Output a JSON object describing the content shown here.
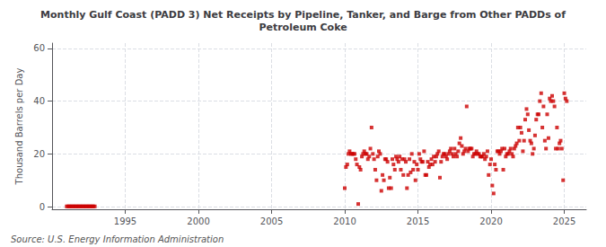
{
  "chart_data": {
    "type": "scatter",
    "title": "Monthly Gulf Coast (PADD 3) Net Receipts by Pipeline, Tanker, and Barge from Other PADDs of\nPetroleum Coke",
    "ylabel": "Thousand Barrels per Day",
    "annotations": [
      "Source: U.S. Energy Information Administration"
    ],
    "xlim": [
      1990,
      2026.5
    ],
    "ylim": [
      -1,
      62
    ],
    "xticks": [
      1995,
      2000,
      2005,
      2010,
      2015,
      2020,
      2025
    ],
    "yticks": [
      0,
      20,
      40,
      60
    ],
    "grid": true,
    "marker": "square",
    "series": [
      {
        "color": "#cc0000",
        "x": [
          1991.0,
          1991.08,
          1991.17,
          1991.25,
          1991.33,
          1991.42,
          1991.5,
          1991.58,
          1991.67,
          1991.75,
          1991.83,
          1991.92,
          1992.0,
          1992.08,
          1992.17,
          1992.25,
          1992.33,
          1992.42,
          1992.5,
          1992.58,
          1992.67,
          1992.75,
          1992.83,
          1992.92
        ],
        "values": [
          0.1,
          0.1,
          0.1,
          0.1,
          0.1,
          0.1,
          0.1,
          0.1,
          0.1,
          0.1,
          0.1,
          0.1,
          0.1,
          0.1,
          0.1,
          0.1,
          0.1,
          0.1,
          0.1,
          0.1,
          0.1,
          0.1,
          0.1,
          0.1
        ]
      },
      {
        "color": "#cc0000",
        "x": [
          2010.0,
          2010.08,
          2010.17,
          2010.25,
          2010.33,
          2010.42,
          2010.5,
          2010.58,
          2010.67,
          2010.75,
          2010.83,
          2010.92,
          2011.0,
          2011.08,
          2011.17,
          2011.25,
          2011.33,
          2011.42,
          2011.5,
          2011.58,
          2011.67,
          2011.75,
          2011.83,
          2011.92,
          2012.0,
          2012.08,
          2012.17,
          2012.25,
          2012.33,
          2012.42,
          2012.5,
          2012.58,
          2012.67,
          2012.75,
          2012.83,
          2012.92,
          2013.0,
          2013.08,
          2013.17,
          2013.25,
          2013.33,
          2013.42,
          2013.5,
          2013.58,
          2013.67,
          2013.75,
          2013.83,
          2013.92,
          2014.0,
          2014.08,
          2014.17,
          2014.25,
          2014.33,
          2014.42,
          2014.5,
          2014.58,
          2014.67,
          2014.75,
          2014.83,
          2014.92,
          2015.0,
          2015.08,
          2015.17,
          2015.25,
          2015.33,
          2015.42,
          2015.5,
          2015.58,
          2015.67,
          2015.75,
          2015.83,
          2015.92,
          2016.0,
          2016.08,
          2016.17,
          2016.25,
          2016.33,
          2016.42,
          2016.5,
          2016.58,
          2016.67,
          2016.75,
          2016.83,
          2016.92,
          2017.0,
          2017.08,
          2017.17,
          2017.25,
          2017.33,
          2017.42,
          2017.5,
          2017.58,
          2017.67,
          2017.75,
          2017.83,
          2017.92,
          2018.0,
          2018.08,
          2018.17,
          2018.25,
          2018.33,
          2018.42,
          2018.5,
          2018.58,
          2018.67,
          2018.75,
          2018.83,
          2018.92,
          2019.0,
          2019.08,
          2019.17,
          2019.25,
          2019.33,
          2019.42,
          2019.5,
          2019.58,
          2019.67,
          2019.75,
          2019.83,
          2019.92,
          2020.0,
          2020.08,
          2020.17,
          2020.25,
          2020.33,
          2020.42,
          2020.5,
          2020.58,
          2020.67,
          2020.75,
          2020.83,
          2020.92,
          2021.0,
          2021.08,
          2021.17,
          2021.25,
          2021.33,
          2021.42,
          2021.5,
          2021.58,
          2021.67,
          2021.75,
          2021.83,
          2021.92,
          2022.0,
          2022.08,
          2022.17,
          2022.25,
          2022.33,
          2022.42,
          2022.5,
          2022.58,
          2022.67,
          2022.75,
          2022.83,
          2022.92,
          2023.0,
          2023.08,
          2023.17,
          2023.25,
          2023.33,
          2023.42,
          2023.5,
          2023.58,
          2023.67,
          2023.75,
          2023.83,
          2023.92,
          2024.0,
          2024.08,
          2024.17,
          2024.25,
          2024.33,
          2024.42,
          2024.5,
          2024.58,
          2024.67,
          2024.75,
          2024.83,
          2024.92,
          2025.0,
          2025.08,
          2025.17
        ],
        "values": [
          7,
          15,
          16,
          20,
          21,
          20,
          20,
          20,
          20,
          18,
          16,
          1,
          15,
          14,
          19,
          20,
          21,
          20,
          20,
          18,
          19,
          22,
          30,
          20,
          18,
          14,
          10,
          19,
          21,
          20,
          6,
          12,
          10,
          18,
          18,
          17,
          7,
          11,
          7,
          18,
          16,
          14,
          19,
          18,
          17,
          19,
          14,
          18,
          12,
          18,
          17,
          7,
          12,
          18,
          13,
          20,
          14,
          17,
          10,
          16,
          14,
          20,
          18,
          17,
          17,
          21,
          12,
          12,
          17,
          15,
          16,
          18,
          16,
          19,
          17,
          19,
          20,
          21,
          11,
          17,
          19,
          20,
          20,
          19,
          18,
          20,
          21,
          22,
          20,
          19,
          22,
          20,
          19,
          21,
          24,
          26,
          23,
          20,
          21,
          22,
          38,
          21,
          22,
          22,
          22,
          19,
          20,
          20,
          21,
          20,
          20,
          19,
          19,
          19,
          20,
          18,
          19,
          21,
          12,
          16,
          18,
          8,
          5,
          16,
          14,
          21,
          21,
          20,
          21,
          22,
          14,
          22,
          19,
          20,
          20,
          21,
          22,
          20,
          19,
          22,
          23,
          24,
          30,
          25,
          30,
          28,
          21,
          25,
          33,
          37,
          35,
          29,
          25,
          24,
          20,
          22,
          27,
          33,
          35,
          35,
          40,
          43,
          30,
          38,
          25,
          22,
          35,
          26,
          41,
          40,
          42,
          40,
          38,
          22,
          30,
          22,
          24,
          25,
          22,
          10,
          43,
          41,
          40
        ]
      }
    ]
  }
}
